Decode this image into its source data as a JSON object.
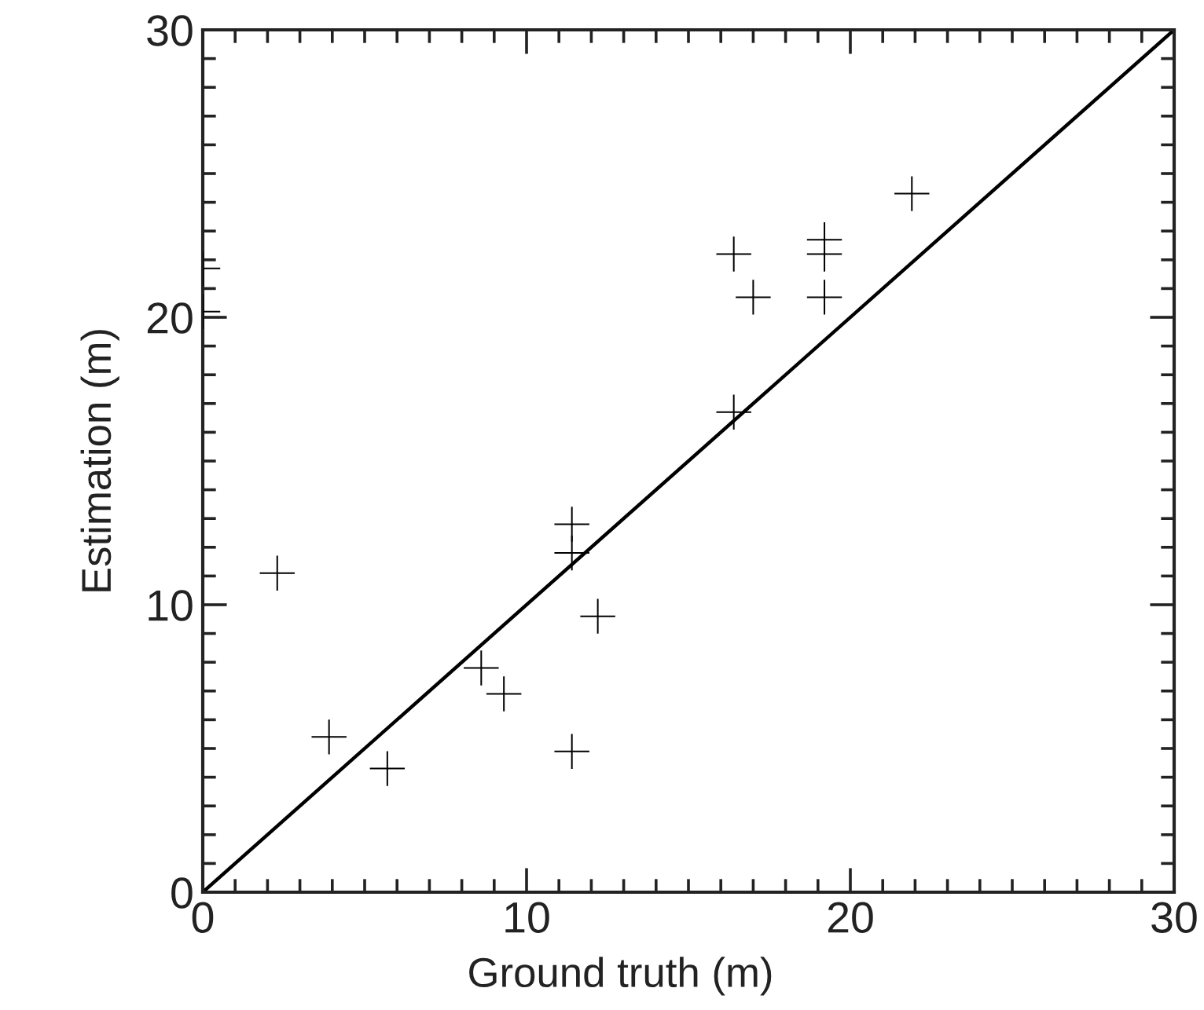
{
  "chart_data": {
    "type": "scatter",
    "xlabel": "Ground truth (m)",
    "ylabel": "Estimation (m)",
    "xlim": [
      0,
      30
    ],
    "ylim": [
      0,
      30
    ],
    "xticks": [
      0,
      {
        "value": 1,
        "label": null
      },
      {
        "value": 2,
        "label": null
      },
      {
        "value": 3,
        "label": null
      },
      {
        "value": 4,
        "label": null
      },
      {
        "value": 5,
        "label": null
      },
      {
        "value": 6,
        "label": null
      },
      {
        "value": 7,
        "label": null
      },
      {
        "value": 8,
        "label": null
      },
      {
        "value": 9,
        "label": null
      },
      10,
      {
        "value": 11,
        "label": null
      },
      {
        "value": 12,
        "label": null
      },
      {
        "value": 13,
        "label": null
      },
      {
        "value": 14,
        "label": null
      },
      {
        "value": 15,
        "label": null
      },
      {
        "value": 16,
        "label": null
      },
      {
        "value": 17,
        "label": null
      },
      {
        "value": 18,
        "label": null
      },
      {
        "value": 19,
        "label": null
      },
      20,
      {
        "value": 21,
        "label": null
      },
      {
        "value": 22,
        "label": null
      },
      {
        "value": 23,
        "label": null
      },
      {
        "value": 24,
        "label": null
      },
      {
        "value": 25,
        "label": null
      },
      {
        "value": 26,
        "label": null
      },
      {
        "value": 27,
        "label": null
      },
      {
        "value": 28,
        "label": null
      },
      {
        "value": 29,
        "label": null
      },
      30
    ],
    "yticks": [
      0,
      {
        "value": 1,
        "label": null
      },
      {
        "value": 2,
        "label": null
      },
      {
        "value": 3,
        "label": null
      },
      {
        "value": 4,
        "label": null
      },
      {
        "value": 5,
        "label": null
      },
      {
        "value": 6,
        "label": null
      },
      {
        "value": 7,
        "label": null
      },
      {
        "value": 8,
        "label": null
      },
      {
        "value": 9,
        "label": null
      },
      10,
      {
        "value": 11,
        "label": null
      },
      {
        "value": 12,
        "label": null
      },
      {
        "value": 13,
        "label": null
      },
      {
        "value": 14,
        "label": null
      },
      {
        "value": 15,
        "label": null
      },
      {
        "value": 16,
        "label": null
      },
      {
        "value": 17,
        "label": null
      },
      {
        "value": 18,
        "label": null
      },
      {
        "value": 19,
        "label": null
      },
      20,
      {
        "value": 21,
        "label": null
      },
      {
        "value": 22,
        "label": null
      },
      {
        "value": 23,
        "label": null
      },
      {
        "value": 24,
        "label": null
      },
      {
        "value": 25,
        "label": null
      },
      {
        "value": 26,
        "label": null
      },
      {
        "value": 27,
        "label": null
      },
      {
        "value": 28,
        "label": null
      },
      {
        "value": 29,
        "label": null
      },
      30
    ],
    "marker": "cross",
    "series": [
      {
        "color": "#000000",
        "x": [
          0,
          0,
          2.3,
          3.9,
          5.7,
          8.6,
          9.3,
          11.4,
          11.4,
          11.4,
          12.2,
          16.4,
          16.4,
          17.0,
          19.2,
          19.2,
          19.2,
          21.9
        ],
        "values": [
          21.7,
          20.2,
          11.1,
          5.4,
          4.3,
          7.8,
          6.9,
          12.8,
          11.8,
          4.9,
          9.6,
          16.7,
          22.2,
          20.7,
          22.7,
          22.2,
          20.7,
          24.3
        ]
      },
      {
        "type": "line",
        "color": "#000000",
        "marker": "none",
        "line_style": "solid",
        "x": [
          0,
          30
        ],
        "values": [
          0,
          30
        ]
      }
    ]
  }
}
